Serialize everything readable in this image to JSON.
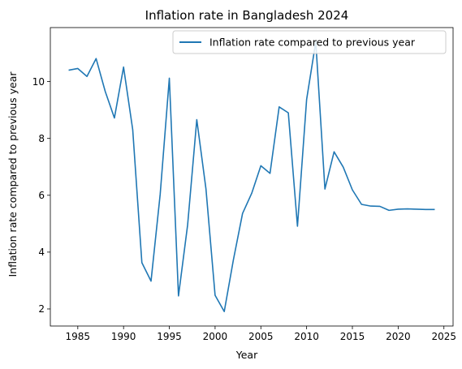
{
  "chart_data": {
    "type": "line",
    "title": "Inflation rate in Bangladesh 2024",
    "xlabel": "Year",
    "ylabel": "Inflation rate compared to previous year",
    "xlim": [
      1982,
      2026
    ],
    "ylim": [
      1.4,
      11.9
    ],
    "xticks": [
      1985,
      1990,
      1995,
      2000,
      2005,
      2010,
      2015,
      2020,
      2025
    ],
    "yticks": [
      2,
      4,
      6,
      8,
      10
    ],
    "grid": false,
    "legend_position": "top-right",
    "line_color": "#1f77b4",
    "series": [
      {
        "name": "Inflation rate compared to previous year",
        "x": [
          1984,
          1985,
          1986,
          1987,
          1988,
          1989,
          1990,
          1991,
          1992,
          1993,
          1994,
          1995,
          1996,
          1997,
          1998,
          1999,
          2000,
          2001,
          2002,
          2003,
          2004,
          2005,
          2006,
          2007,
          2008,
          2009,
          2010,
          2011,
          2012,
          2013,
          2014,
          2015,
          2016,
          2017,
          2018,
          2019,
          2020,
          2021,
          2022,
          2023,
          2024
        ],
        "y": [
          10.4,
          10.46,
          10.18,
          10.81,
          9.65,
          8.72,
          10.51,
          8.31,
          3.63,
          2.98,
          6.03,
          10.12,
          2.46,
          4.96,
          8.66,
          6.23,
          2.48,
          1.91,
          3.73,
          5.36,
          6.07,
          7.04,
          6.77,
          9.11,
          8.9,
          4.91,
          9.37,
          11.4,
          6.22,
          7.53,
          6.99,
          6.19,
          5.68,
          5.62,
          5.61,
          5.47,
          5.51,
          5.52,
          5.51,
          5.5,
          5.5
        ]
      }
    ]
  }
}
